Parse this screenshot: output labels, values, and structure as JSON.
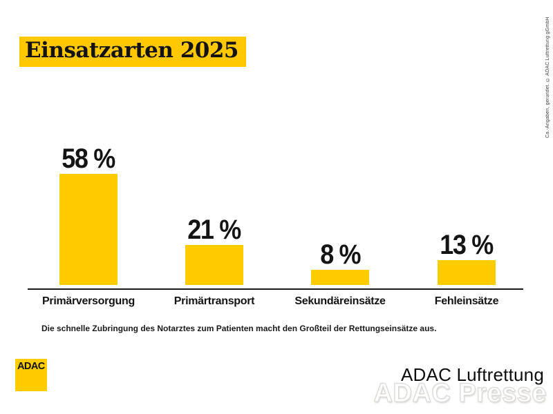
{
  "page": {
    "background": "#ffffff",
    "brand_yellow": "#FFCC00",
    "title_bg_yellow": "#FFC800",
    "text_black": "#141414"
  },
  "header": {
    "title": "Einsatzarten 2025"
  },
  "chart_data": {
    "type": "bar",
    "title": "Einsatzarten 2025",
    "categories": [
      "Primärversorgung",
      "Primärtransport",
      "Sekundäreinsätze",
      "Fehleinsätze"
    ],
    "values": [
      58,
      21,
      8,
      13
    ],
    "value_labels": [
      "58 %",
      "21 %",
      "8 %",
      "13 %"
    ],
    "unit": "%",
    "bar_color": "#FFCC00",
    "axis_color": "#1a1a1a",
    "ylim": [
      0,
      60
    ],
    "grid": false,
    "legend": "none",
    "value_label_position": "above-bar"
  },
  "footnote": "Die schnelle Zubringung des Notarztes zum Patienten macht den Großteil der Rettungseinsätze aus.",
  "branding": {
    "logo_text": "ADAC",
    "logo_bg": "#FFCC00",
    "wordmark": "ADAC Luftrettung",
    "watermark": "ADAC Presse"
  },
  "copyright_note": "Ca.-Angaben, gerundet. © ADAC Luftrettung gGmbH"
}
